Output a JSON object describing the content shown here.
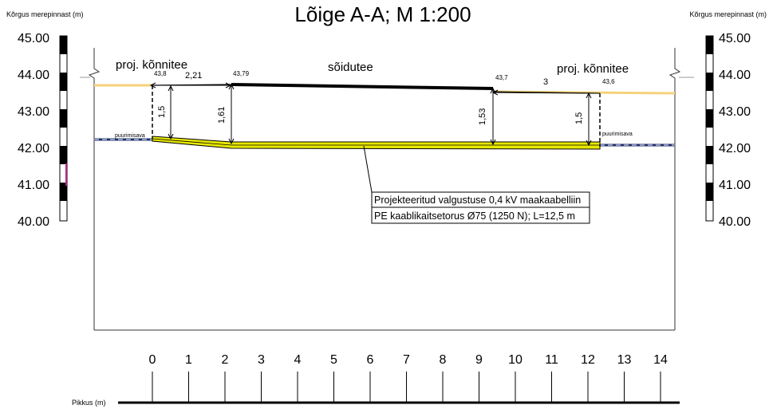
{
  "title": "Lõige A-A; M 1:200",
  "axis_label_left": "Kõrgus merepinnast (m)",
  "axis_label_right": "Kõrgus merepinnast (m)",
  "x_axis_label": "Pikkus (m)",
  "elevation_ticks": [
    "45.00",
    "44.00",
    "43.00",
    "42.00",
    "41.00",
    "40.00"
  ],
  "distance_ticks": [
    "0",
    "1",
    "2",
    "3",
    "4",
    "5",
    "6",
    "7",
    "8",
    "9",
    "10",
    "11",
    "12",
    "13",
    "14"
  ],
  "sections": {
    "left_sidewalk": "proj. kõnnitee",
    "road": "sõidutee",
    "right_sidewalk": "proj. kõnnitee"
  },
  "surface_levels": {
    "p1": "43,8",
    "p2": "43,79",
    "p3": "43,7",
    "p4": "43,6"
  },
  "widths": {
    "left_sidewalk": "2,21",
    "right_sidewalk": "3"
  },
  "depths": {
    "d1": "1,5",
    "d2": "1,61",
    "d3": "1,53",
    "d4": "1,5"
  },
  "pits": {
    "left": "puurimisava",
    "right": "puurimisava"
  },
  "callout": {
    "line1": "Projekteeritud valgustuse 0,4 kV maakaabelliin",
    "line2": "PE kaablikaitsetorus Ø75 (1250 N); L=12,5 m"
  },
  "colors": {
    "sidewalk_surface": "#f5d27a",
    "cable": "#e8e800",
    "ground": "#1f2f6e",
    "road_surface": "#000000"
  }
}
